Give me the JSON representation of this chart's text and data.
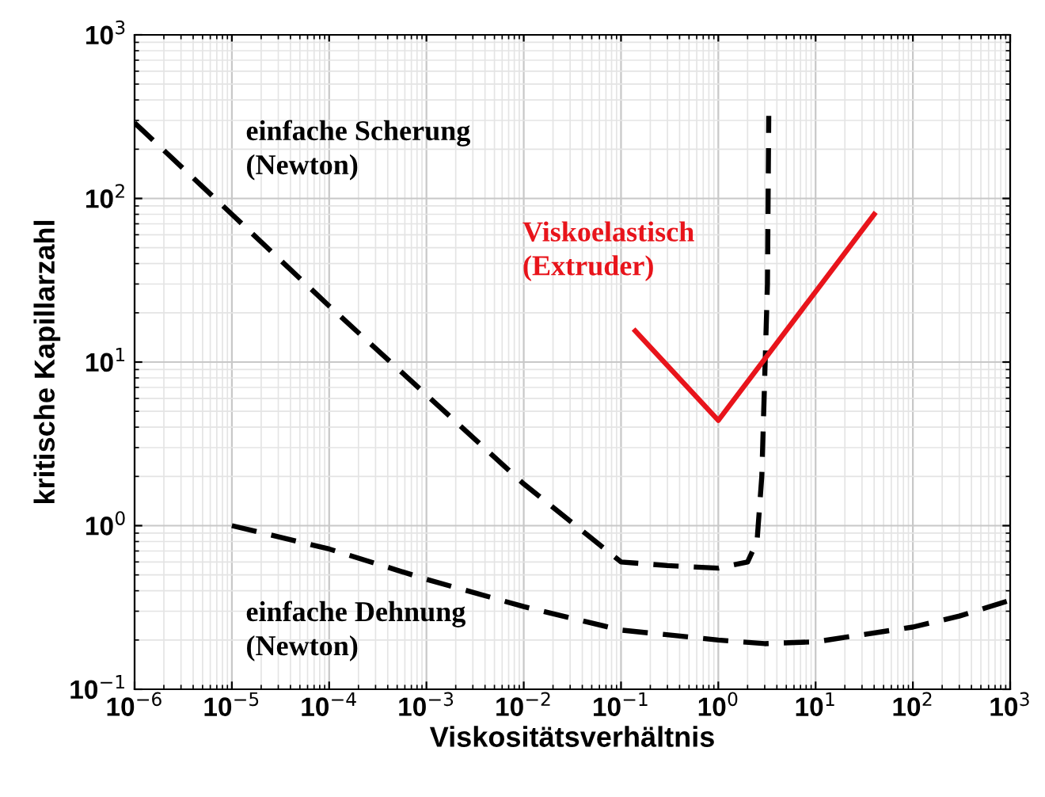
{
  "chart_data": {
    "type": "line",
    "xlabel": "Viskositätsverhältnis",
    "ylabel": "kritische Kapillarzahl",
    "log": "xy",
    "grid": true,
    "xlim": [
      1e-06,
      1000
    ],
    "ylim": [
      0.1,
      1000
    ],
    "xticks": [
      {
        "value": 1e-06,
        "label": "10$^{−6}$"
      },
      {
        "value": 1e-05,
        "label": "10$^{−5}$"
      },
      {
        "value": 0.0001,
        "label": "10$^{−4}$"
      },
      {
        "value": 0.001,
        "label": "10$^{−3}$"
      },
      {
        "value": 0.01,
        "label": "10$^{−2}$"
      },
      {
        "value": 0.1,
        "label": "10$^{−1}$"
      },
      {
        "value": 1,
        "label": "10$^{0}$"
      },
      {
        "value": 10,
        "label": "10$^{1}$"
      },
      {
        "value": 100,
        "label": "10$^{2}$"
      },
      {
        "value": 1000,
        "label": "10$^{3}$"
      }
    ],
    "yticks": [
      {
        "value": 0.1,
        "label": "10$^{−1}$"
      },
      {
        "value": 1,
        "label": "10$^{0}$"
      },
      {
        "value": 10,
        "label": "10$^{1}$"
      },
      {
        "value": 100,
        "label": "10$^{2}$"
      },
      {
        "value": 1000,
        "label": "10$^{3}$"
      }
    ],
    "series": [
      {
        "name": "einfache Scherung\n(Newton)",
        "color": "#000000",
        "line_style": "dashed",
        "x": [
          1e-06,
          1e-05,
          0.0001,
          0.001,
          0.01,
          0.1,
          0.3,
          1,
          2,
          2.5,
          2.8,
          3.2,
          3.3
        ],
        "values": [
          290,
          80,
          22,
          6.3,
          1.8,
          0.6,
          0.57,
          0.55,
          0.6,
          0.8,
          2,
          30,
          320
        ]
      },
      {
        "name": "einfache Dehnung\n(Newton)",
        "color": "#000000",
        "line_style": "dashed",
        "x": [
          1e-05,
          0.0001,
          0.001,
          0.01,
          0.1,
          1,
          3,
          10,
          100,
          300,
          1000
        ],
        "values": [
          1.0,
          0.72,
          0.47,
          0.32,
          0.23,
          0.2,
          0.19,
          0.195,
          0.24,
          0.28,
          0.35
        ]
      },
      {
        "name": "Viskoelastisch\n(Extruder)",
        "color": "#e8141b",
        "line_style": "solid",
        "x": [
          0.14,
          1,
          40
        ],
        "values": [
          15.5,
          4.4,
          80
        ]
      }
    ]
  }
}
